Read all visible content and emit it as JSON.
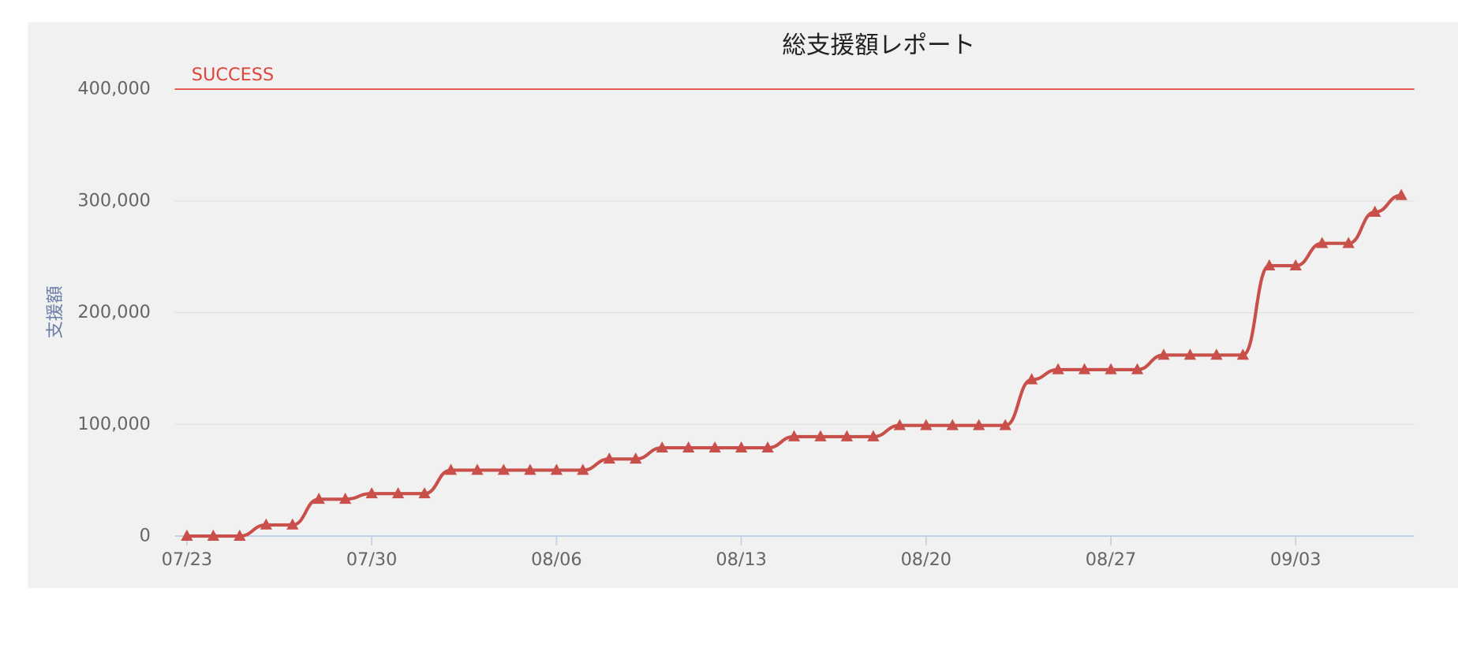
{
  "chart_data": {
    "type": "line",
    "title": "総支援額レポート",
    "y_axis_label": "支援額",
    "categories": [
      "07/23",
      null,
      null,
      null,
      null,
      null,
      null,
      "07/30",
      null,
      null,
      null,
      null,
      null,
      null,
      "08/06",
      null,
      null,
      null,
      null,
      null,
      null,
      "08/13",
      null,
      null,
      null,
      null,
      null,
      null,
      "08/20",
      null,
      null,
      null,
      null,
      null,
      null,
      "08/27",
      null,
      null,
      null,
      null,
      null,
      null,
      "09/03",
      null,
      null,
      null,
      null
    ],
    "series": [
      {
        "color": "#c9504a",
        "marker": "triangle",
        "values": [
          0,
          0,
          0,
          10000,
          10000,
          33000,
          33000,
          38000,
          38000,
          38000,
          59000,
          59000,
          59000,
          59000,
          59000,
          59000,
          69000,
          69000,
          79000,
          79000,
          79000,
          79000,
          79000,
          89000,
          89000,
          89000,
          89000,
          99000,
          99000,
          99000,
          99000,
          99000,
          140000,
          149000,
          149000,
          149000,
          149000,
          162000,
          162000,
          162000,
          162000,
          242000,
          242000,
          262000,
          262000,
          290000,
          305000
        ]
      }
    ],
    "plot_lines": [
      {
        "value": 400000,
        "label": "SUCCESS",
        "color": "#e0453a"
      }
    ],
    "ylim": [
      0,
      400000
    ],
    "yticks": [
      0,
      {
        "value": 100000,
        "label": "100,000"
      },
      {
        "value": 200000,
        "label": "200,000"
      },
      {
        "value": 300000,
        "label": "300,000"
      },
      {
        "value": 400000,
        "label": "400,000"
      }
    ],
    "grid": true
  }
}
